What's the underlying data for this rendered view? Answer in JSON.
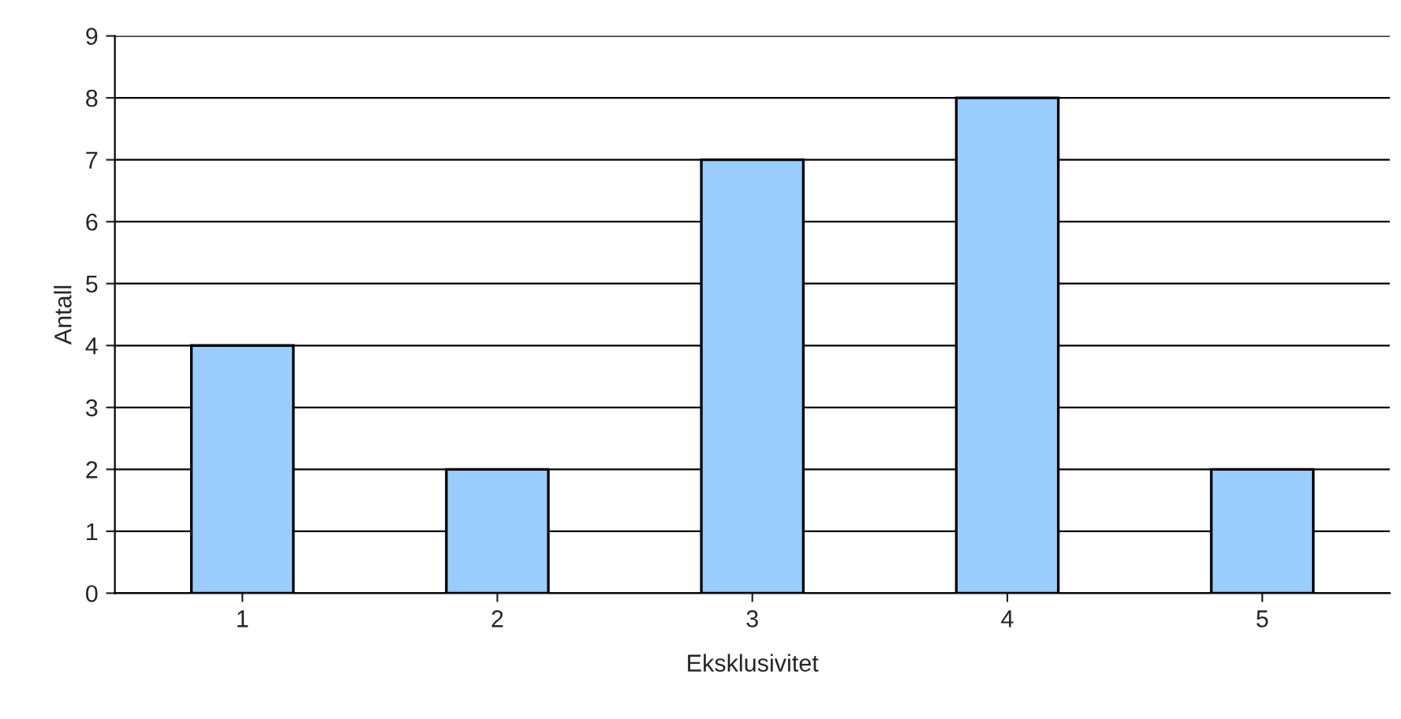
{
  "chart_data": {
    "type": "bar",
    "xlabel": "Eksklusivitet",
    "ylabel": "Antall",
    "categories": [
      "1",
      "2",
      "3",
      "4",
      "5"
    ],
    "values": [
      4,
      2,
      7,
      8,
      2
    ],
    "color": "#99ccff",
    "ylim": [
      0,
      9
    ],
    "yticks": [
      0,
      1,
      2,
      3,
      4,
      5,
      6,
      7,
      8,
      9
    ],
    "grid": "y",
    "legend": false
  }
}
